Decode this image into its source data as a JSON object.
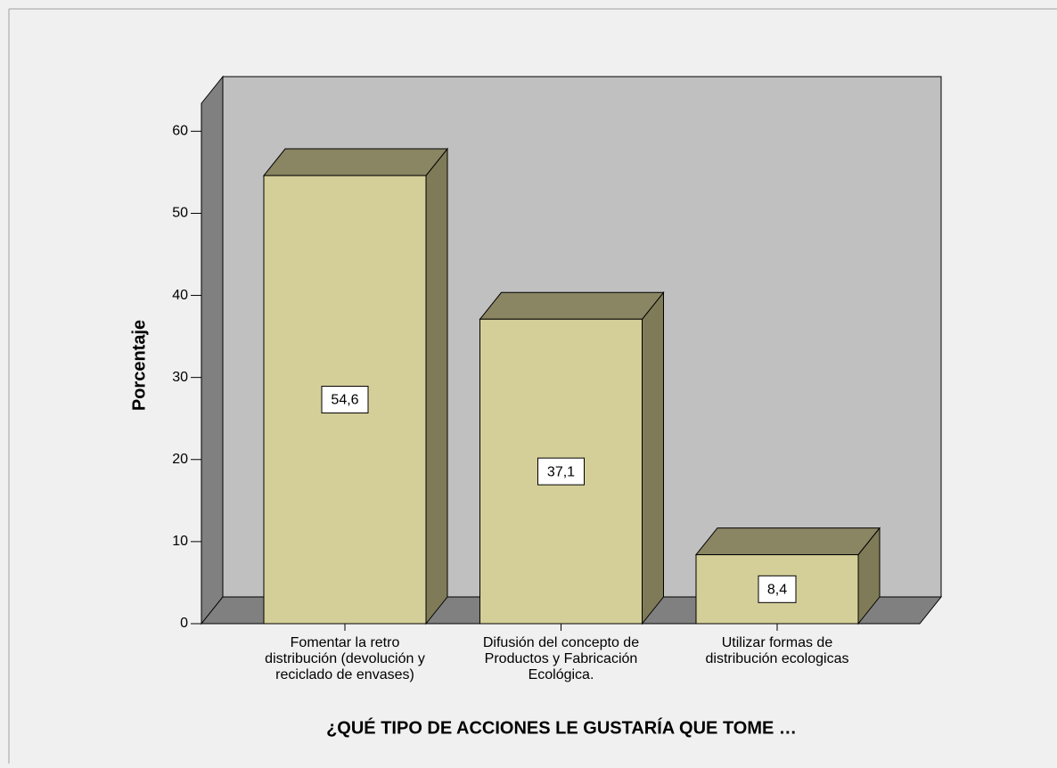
{
  "chart_data": {
    "type": "bar3d",
    "x_label": "¿QUÉ TIPO DE ACCIONES LE GUSTARÍA QUE TOME …",
    "y_label": "Porcentaje",
    "categories": [
      [
        "Fomentar la retro",
        "distribución (devolución y",
        "reciclado de envases)"
      ],
      [
        "Difusión del concepto de",
        "Productos y Fabricación",
        "Ecológica."
      ],
      [
        "Utilizar formas de",
        "distribución ecologicas"
      ]
    ],
    "values": [
      54.6,
      37.1,
      8.4
    ],
    "value_labels": [
      "54,6",
      "37,1",
      "8,4"
    ],
    "color": "#d4cf98",
    "ylim": [
      0,
      63.4
    ],
    "yticks": [
      0,
      10,
      20,
      30,
      40,
      50,
      60
    ]
  }
}
